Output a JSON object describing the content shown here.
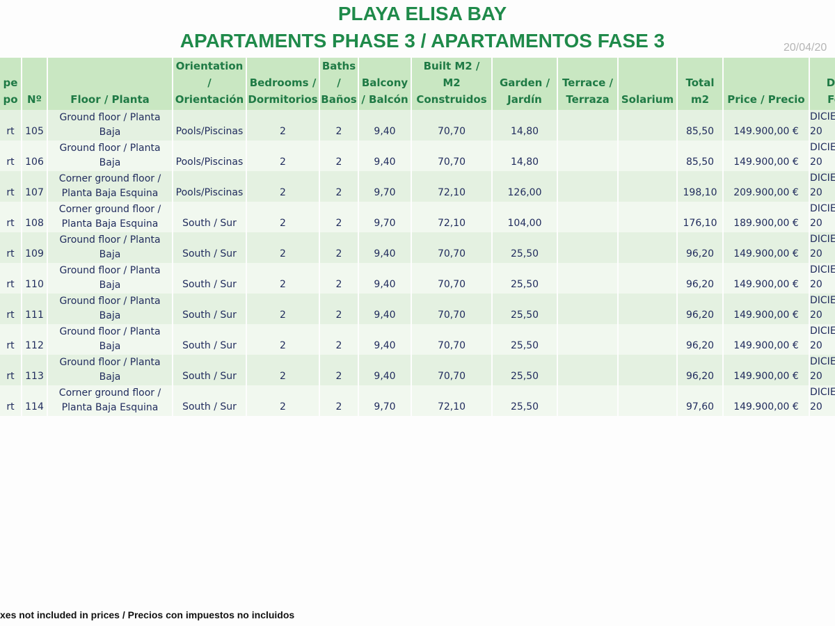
{
  "header": {
    "title": [
      "PLAYA ELISA BAY",
      "APARTAMENTS PHASE 3 / APARTAMENTOS FASE 3"
    ],
    "date": "20/04/20"
  },
  "table": {
    "columns": [
      [
        "pe",
        "po"
      ],
      [
        "Nº"
      ],
      [
        "Floor / Planta"
      ],
      [
        "Orientation",
        "/",
        "Orientación"
      ],
      [
        "Bedrooms /",
        "Dormitorios"
      ],
      [
        "Baths",
        "/",
        "Baños"
      ],
      [
        "Balcony",
        "/ Balcón"
      ],
      [
        "Built M2 /",
        "M2",
        "Construidos"
      ],
      [
        "Garden /",
        "Jardín"
      ],
      [
        "Terrace /",
        "Terraza"
      ],
      [
        "Solarium"
      ],
      [
        "Total",
        "m2"
      ],
      [
        "Price / Precio"
      ],
      [
        "Da",
        "Fe"
      ]
    ],
    "rows": [
      [
        "rt",
        "105",
        "Ground floor / Planta Baja",
        "Pools/Piscinas",
        "2",
        "2",
        "9,40",
        "70,70",
        "14,80",
        "85,50",
        "149.900,00 €",
        [
          "DICIE",
          "20"
        ]
      ],
      [
        "rt",
        "106",
        "Ground floor / Planta Baja",
        "Pools/Piscinas",
        "2",
        "2",
        "9,40",
        "70,70",
        "14,80",
        "85,50",
        "149.900,00 €",
        [
          "DICIE",
          "20"
        ]
      ],
      [
        "rt",
        "107",
        "Corner ground floor / Planta Baja Esquina",
        "Pools/Piscinas",
        "2",
        "2",
        "9,70",
        "72,10",
        "126,00",
        "198,10",
        "209.900,00 €",
        [
          "DICIE",
          "20"
        ]
      ],
      [
        "rt",
        "108",
        "Corner ground floor / Planta Baja Esquina",
        "South / Sur",
        "2",
        "2",
        "9,70",
        "72,10",
        "104,00",
        "176,10",
        "189.900,00 €",
        [
          "DICIE",
          "20"
        ]
      ],
      [
        "rt",
        "109",
        "Ground floor / Planta Baja",
        "South / Sur",
        "2",
        "2",
        "9,40",
        "70,70",
        "25,50",
        "96,20",
        "149.900,00 €",
        [
          "DICIE",
          "20"
        ]
      ],
      [
        "rt",
        "110",
        "Ground floor / Planta Baja",
        "South / Sur",
        "2",
        "2",
        "9,40",
        "70,70",
        "25,50",
        "96,20",
        "149.900,00 €",
        [
          "DICIE",
          "20"
        ]
      ],
      [
        "rt",
        "111",
        "Ground floor / Planta Baja",
        "South / Sur",
        "2",
        "2",
        "9,40",
        "70,70",
        "25,50",
        "96,20",
        "149.900,00 €",
        [
          "DICIE",
          "20"
        ]
      ],
      [
        "rt",
        "112",
        "Ground floor / Planta Baja",
        "South / Sur",
        "2",
        "2",
        "9,40",
        "70,70",
        "25,50",
        "96,20",
        "149.900,00 €",
        [
          "DICIE",
          "20"
        ]
      ],
      [
        "rt",
        "113",
        "Ground floor / Planta Baja",
        "South / Sur",
        "2",
        "2",
        "9,40",
        "70,70",
        "25,50",
        "96,20",
        "149.900,00 €",
        [
          "DICIE",
          "20"
        ]
      ],
      [
        "rt",
        "114",
        "Corner ground floor / Planta Baja Esquina",
        "South / Sur",
        "2",
        "2",
        "9,70",
        "72,10",
        "25,50",
        "97,60",
        "149.900,00 €",
        [
          "DICIE",
          "20"
        ]
      ]
    ]
  },
  "footer": "xes not included in prices / Precios con impuestos no incluidos"
}
